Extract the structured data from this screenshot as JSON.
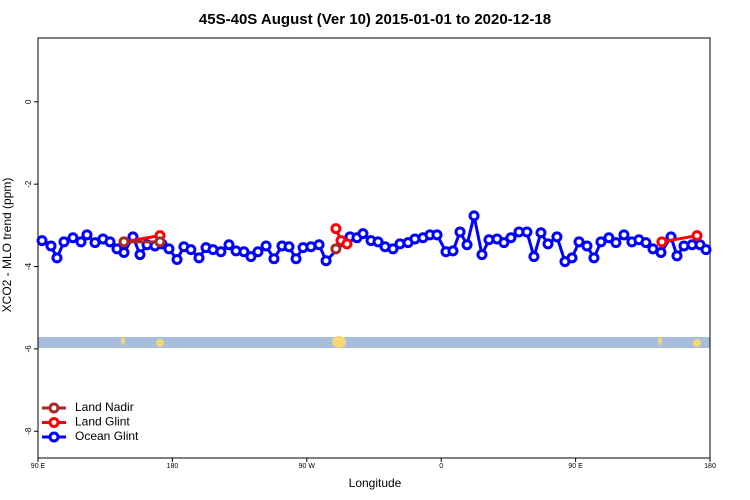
{
  "chart_data": {
    "type": "line",
    "title": "45S-40S August (Ver 10)   2015-01-01 to 2020-12-18",
    "x_label": "Longitude",
    "y_label": "XCO2 - MLO trend (ppm)",
    "xlim": [
      90,
      540
    ],
    "ylim": [
      -8.65,
      1.55
    ],
    "xticks": [
      {
        "value": 90,
        "label": "90 E"
      },
      {
        "value": 180,
        "label": "180"
      },
      {
        "value": 270,
        "label": "90 W"
      },
      {
        "value": 360,
        "label": "0"
      },
      {
        "value": 450,
        "label": "90 E"
      },
      {
        "value": 540,
        "label": "180"
      }
    ],
    "yticks": [
      0,
      -2,
      -4,
      -6,
      -8
    ],
    "legend": "bottom-left",
    "series": [
      {
        "name": "Land Nadir",
        "color": "#a52a2a",
        "x": [
          147.6,
          171.7,
          null,
          289.5
        ],
        "values": [
          -3.4,
          -3.4,
          null,
          -3.57
        ]
      },
      {
        "name": "Land Glint",
        "color": "#ff0000",
        "x": [
          147.6,
          171.7,
          null,
          289.5,
          292.9,
          296.9,
          null,
          507.8,
          531.3
        ],
        "values": [
          -3.4,
          -3.25,
          null,
          -3.08,
          -3.37,
          -3.45,
          null,
          -3.4,
          -3.25
        ]
      },
      {
        "name": "Ocean Glint",
        "color": "#0000ff",
        "x": [
          92.7,
          98.7,
          102.7,
          107.4,
          113.4,
          118.8,
          122.8,
          128.2,
          133.5,
          138.2,
          142.9,
          147.6,
          153.6,
          158.3,
          163.0,
          168.3,
          173.0,
          177.7,
          183.1,
          187.7,
          192.4,
          197.8,
          202.5,
          207.2,
          212.5,
          217.9,
          222.6,
          227.9,
          232.6,
          237.3,
          242.7,
          248.0,
          253.4,
          258.1,
          262.8,
          267.5,
          272.8,
          278.2,
          282.9,
          298.9,
          303.6,
          307.6,
          313.0,
          317.7,
          322.4,
          327.7,
          332.4,
          337.8,
          342.4,
          347.8,
          352.5,
          357.2,
          363.2,
          367.9,
          372.6,
          377.3,
          382.0,
          387.3,
          392.0,
          397.4,
          402.0,
          406.7,
          412.1,
          417.4,
          422.1,
          426.8,
          431.5,
          437.5,
          442.9,
          447.6,
          452.3,
          457.6,
          462.3,
          467.0,
          472.3,
          477.0,
          482.4,
          487.7,
          492.4,
          497.1,
          501.8,
          507.2,
          513.9,
          517.9,
          522.6,
          528.0,
          533.3,
          537.3
        ],
        "values": [
          -3.37,
          -3.5,
          -3.79,
          -3.4,
          -3.3,
          -3.4,
          -3.23,
          -3.42,
          -3.33,
          -3.4,
          -3.57,
          -3.66,
          -3.28,
          -3.71,
          -3.47,
          -3.5,
          -3.45,
          -3.57,
          -3.83,
          -3.52,
          -3.59,
          -3.79,
          -3.54,
          -3.59,
          -3.64,
          -3.47,
          -3.62,
          -3.64,
          -3.76,
          -3.64,
          -3.5,
          -3.81,
          -3.5,
          -3.52,
          -3.81,
          -3.54,
          -3.52,
          -3.47,
          -3.86,
          -3.28,
          -3.3,
          -3.2,
          -3.37,
          -3.4,
          -3.52,
          -3.57,
          -3.45,
          -3.42,
          -3.33,
          -3.3,
          -3.23,
          -3.23,
          -3.64,
          -3.62,
          -3.16,
          -3.47,
          -2.77,
          -3.71,
          -3.35,
          -3.33,
          -3.42,
          -3.3,
          -3.16,
          -3.16,
          -3.76,
          -3.18,
          -3.45,
          -3.28,
          -3.88,
          -3.79,
          -3.4,
          -3.5,
          -3.79,
          -3.4,
          -3.3,
          -3.42,
          -3.23,
          -3.4,
          -3.35,
          -3.42,
          -3.57,
          -3.66,
          -3.28,
          -3.74,
          -3.5,
          -3.47,
          -3.47,
          -3.59
        ]
      }
    ]
  }
}
